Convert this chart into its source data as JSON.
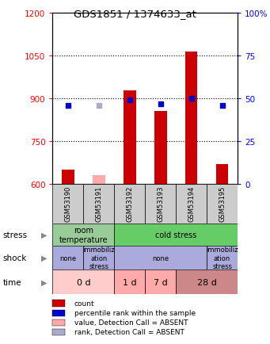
{
  "title": "GDS1851 / 1374633_at",
  "samples": [
    "GSM53190",
    "GSM53191",
    "GSM53192",
    "GSM53193",
    "GSM53194",
    "GSM53195"
  ],
  "bar_bottom": 600,
  "count_values": [
    648,
    630,
    928,
    855,
    1065,
    670
  ],
  "count_colors": [
    "#cc0000",
    "#ffaaaa",
    "#cc0000",
    "#cc0000",
    "#cc0000",
    "#cc0000"
  ],
  "rank_values": [
    46,
    46,
    49,
    47,
    50,
    46
  ],
  "rank_colors": [
    "#0000cc",
    "#aaaacc",
    "#0000cc",
    "#0000cc",
    "#0000cc",
    "#0000cc"
  ],
  "ylim_left": [
    600,
    1200
  ],
  "ylim_right": [
    0,
    100
  ],
  "yticks_left": [
    600,
    750,
    900,
    1050,
    1200
  ],
  "yticks_right": [
    0,
    25,
    50,
    75,
    100
  ],
  "stress_labels": [
    [
      "room\ntemperature",
      0,
      2
    ],
    [
      "cold stress",
      2,
      6
    ]
  ],
  "stress_colors": [
    "#99cc99",
    "#66cc66"
  ],
  "shock_labels": [
    [
      "none",
      0,
      1
    ],
    [
      "immobiliz\nation\nstress",
      1,
      2
    ],
    [
      "none",
      2,
      5
    ],
    [
      "immobiliz\nation\nstress",
      5,
      6
    ]
  ],
  "shock_colors": [
    "#aaaadd",
    "#aaaadd",
    "#aaaadd",
    "#aaaadd"
  ],
  "time_labels": [
    [
      "0 d",
      0,
      2
    ],
    [
      "1 d",
      2,
      3
    ],
    [
      "7 d",
      3,
      4
    ],
    [
      "28 d",
      4,
      6
    ]
  ],
  "time_colors": [
    "#ffcccc",
    "#ffaaaa",
    "#ffaaaa",
    "#cc8888"
  ],
  "legend_items": [
    {
      "color": "#cc0000",
      "label": "count"
    },
    {
      "color": "#0000cc",
      "label": "percentile rank within the sample"
    },
    {
      "color": "#ffaaaa",
      "label": "value, Detection Call = ABSENT"
    },
    {
      "color": "#aaaacc",
      "label": "rank, Detection Call = ABSENT"
    }
  ],
  "figsize": [
    3.41,
    4.35
  ],
  "dpi": 100
}
